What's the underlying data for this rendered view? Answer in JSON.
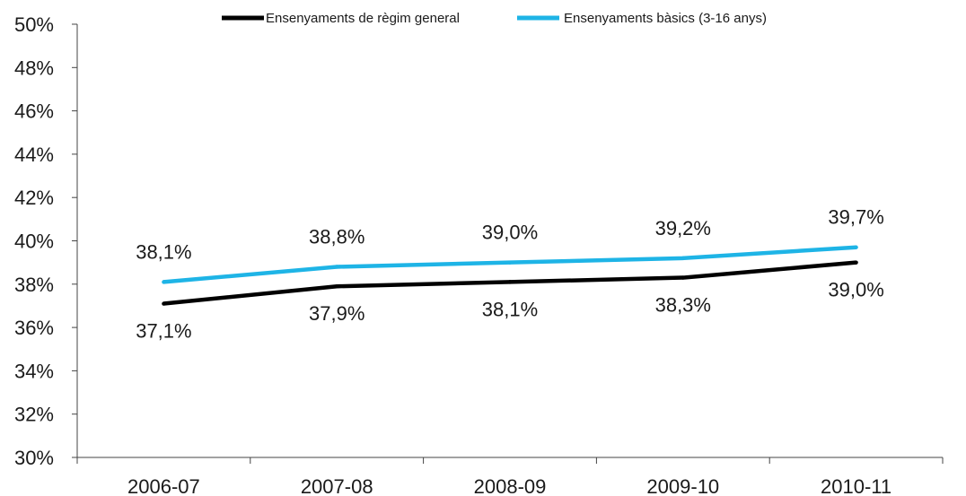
{
  "chart_data": {
    "type": "line",
    "categories": [
      "2006-07",
      "2007-08",
      "2008-09",
      "2009-10",
      "2010-11"
    ],
    "series": [
      {
        "name": "Ensenyaments de règim general",
        "color": "#000000",
        "values": [
          37.1,
          37.9,
          38.1,
          38.3,
          39.0
        ],
        "labels": [
          "37,1%",
          "37,9%",
          "38,1%",
          "38,3%",
          "39,0%"
        ]
      },
      {
        "name": "Ensenyaments bàsics (3-16 anys)",
        "color": "#1eb4e6",
        "values": [
          38.1,
          38.8,
          39.0,
          39.2,
          39.7
        ],
        "labels": [
          "38,1%",
          "38,8%",
          "39,0%",
          "39,2%",
          "39,7%"
        ]
      }
    ],
    "y_ticks": [
      30,
      32,
      34,
      36,
      38,
      40,
      42,
      44,
      46,
      48,
      50
    ],
    "y_tick_labels": [
      "30%",
      "32%",
      "34%",
      "36%",
      "38%",
      "40%",
      "42%",
      "44%",
      "46%",
      "48%",
      "50%"
    ],
    "ylim": [
      30,
      50
    ],
    "grid": false,
    "legend_position": "top-center"
  }
}
